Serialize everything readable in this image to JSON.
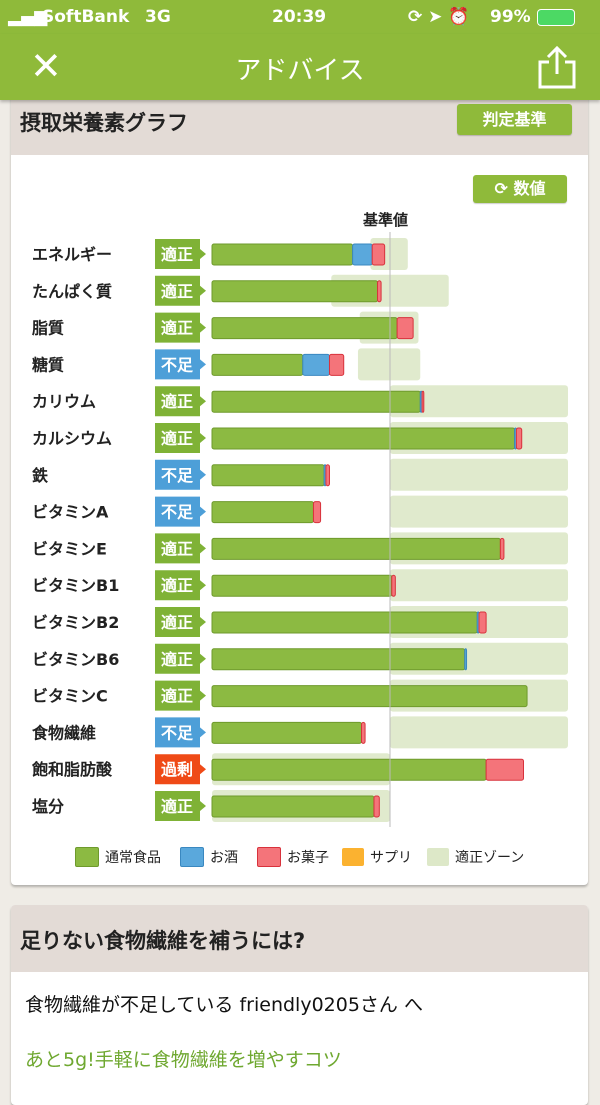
{
  "status_bar": {
    "carrier": "SoftBank",
    "network": "3G",
    "time": "20:39",
    "battery": "99%"
  },
  "nav": {
    "title": "アドバイス",
    "close_icon": "close-icon",
    "share_icon": "share-icon"
  },
  "graph_card": {
    "title": "摂取栄養素グラフ",
    "judge_button": "判定基準",
    "numbers_button": "数値",
    "reference_label": "基準値"
  },
  "colors": {
    "normal": "#8cba42",
    "alcohol": "#5aa8dc",
    "snack": "#f4747a",
    "supplement": "#fbb230",
    "zone": "#dde8c8",
    "badge_ok": "#7fb236",
    "badge_low": "#4d9fd8",
    "badge_over": "#ef4a17",
    "brand": "#8fba3a"
  },
  "chart_data": {
    "type": "bar",
    "orientation": "horizontal-stacked",
    "unit": "% of 基準値",
    "reference_value": 100,
    "series_names": [
      "通常食品",
      "お酒",
      "お菓子",
      "サプリ",
      "適正ゾーン"
    ],
    "rows": [
      {
        "name": "エネルギー",
        "status": "適正",
        "normal": 79,
        "alcohol": 11,
        "snack": 7,
        "supplement": 0,
        "zone": [
          89,
          110
        ]
      },
      {
        "name": "たんぱく質",
        "status": "適正",
        "normal": 93,
        "alcohol": 0,
        "snack": 2,
        "supplement": 0,
        "zone": [
          67,
          133
        ]
      },
      {
        "name": "脂質",
        "status": "適正",
        "normal": 104,
        "alcohol": 0,
        "snack": 9,
        "supplement": 0,
        "zone": [
          83,
          116
        ]
      },
      {
        "name": "糖質",
        "status": "不足",
        "normal": 51,
        "alcohol": 15,
        "snack": 8,
        "supplement": 0,
        "zone": [
          82,
          117
        ]
      },
      {
        "name": "カリウム",
        "status": "適正",
        "normal": 117,
        "alcohol": 1,
        "snack": 1,
        "supplement": 0,
        "zone": [
          100,
          200
        ]
      },
      {
        "name": "カルシウム",
        "status": "適正",
        "normal": 170,
        "alcohol": 1,
        "snack": 3,
        "supplement": 0,
        "zone": [
          100,
          200
        ]
      },
      {
        "name": "鉄",
        "status": "不足",
        "normal": 63,
        "alcohol": 1,
        "snack": 2,
        "supplement": 0,
        "zone": [
          100,
          200
        ]
      },
      {
        "name": "ビタミンA",
        "status": "不足",
        "normal": 57,
        "alcohol": 0,
        "snack": 4,
        "supplement": 0,
        "zone": [
          100,
          200
        ]
      },
      {
        "name": "ビタミンE",
        "status": "適正",
        "normal": 162,
        "alcohol": 0,
        "snack": 2,
        "supplement": 0,
        "zone": [
          100,
          200
        ]
      },
      {
        "name": "ビタミンB1",
        "status": "適正",
        "normal": 101,
        "alcohol": 0,
        "snack": 2,
        "supplement": 0,
        "zone": [
          100,
          200
        ]
      },
      {
        "name": "ビタミンB2",
        "status": "適正",
        "normal": 149,
        "alcohol": 1,
        "snack": 4,
        "supplement": 0,
        "zone": [
          100,
          200
        ]
      },
      {
        "name": "ビタミンB6",
        "status": "適正",
        "normal": 142,
        "alcohol": 1,
        "snack": 0,
        "supplement": 0,
        "zone": [
          100,
          200
        ]
      },
      {
        "name": "ビタミンC",
        "status": "適正",
        "normal": 177,
        "alcohol": 0,
        "snack": 0,
        "supplement": 0,
        "zone": [
          100,
          200
        ]
      },
      {
        "name": "食物繊維",
        "status": "不足",
        "normal": 84,
        "alcohol": 0,
        "snack": 2,
        "supplement": 0,
        "zone": [
          100,
          200
        ]
      },
      {
        "name": "飽和脂肪酸",
        "status": "過剰",
        "normal": 154,
        "alcohol": 0,
        "snack": 21,
        "supplement": 0,
        "zone": [
          0,
          100
        ]
      },
      {
        "name": "塩分",
        "status": "適正",
        "normal": 91,
        "alcohol": 0,
        "snack": 3,
        "supplement": 0,
        "zone": [
          0,
          100
        ]
      }
    ],
    "legend": [
      "通常食品",
      "お酒",
      "お菓子",
      "サプリ",
      "適正ゾーン"
    ],
    "legend_placement": "bottom"
  },
  "advice_card": {
    "title": "足りない食物繊維を補うには?",
    "message": "食物繊維が不足している friendly0205さん へ",
    "link": "あと5g!手軽に食物繊維を増やすコツ"
  }
}
